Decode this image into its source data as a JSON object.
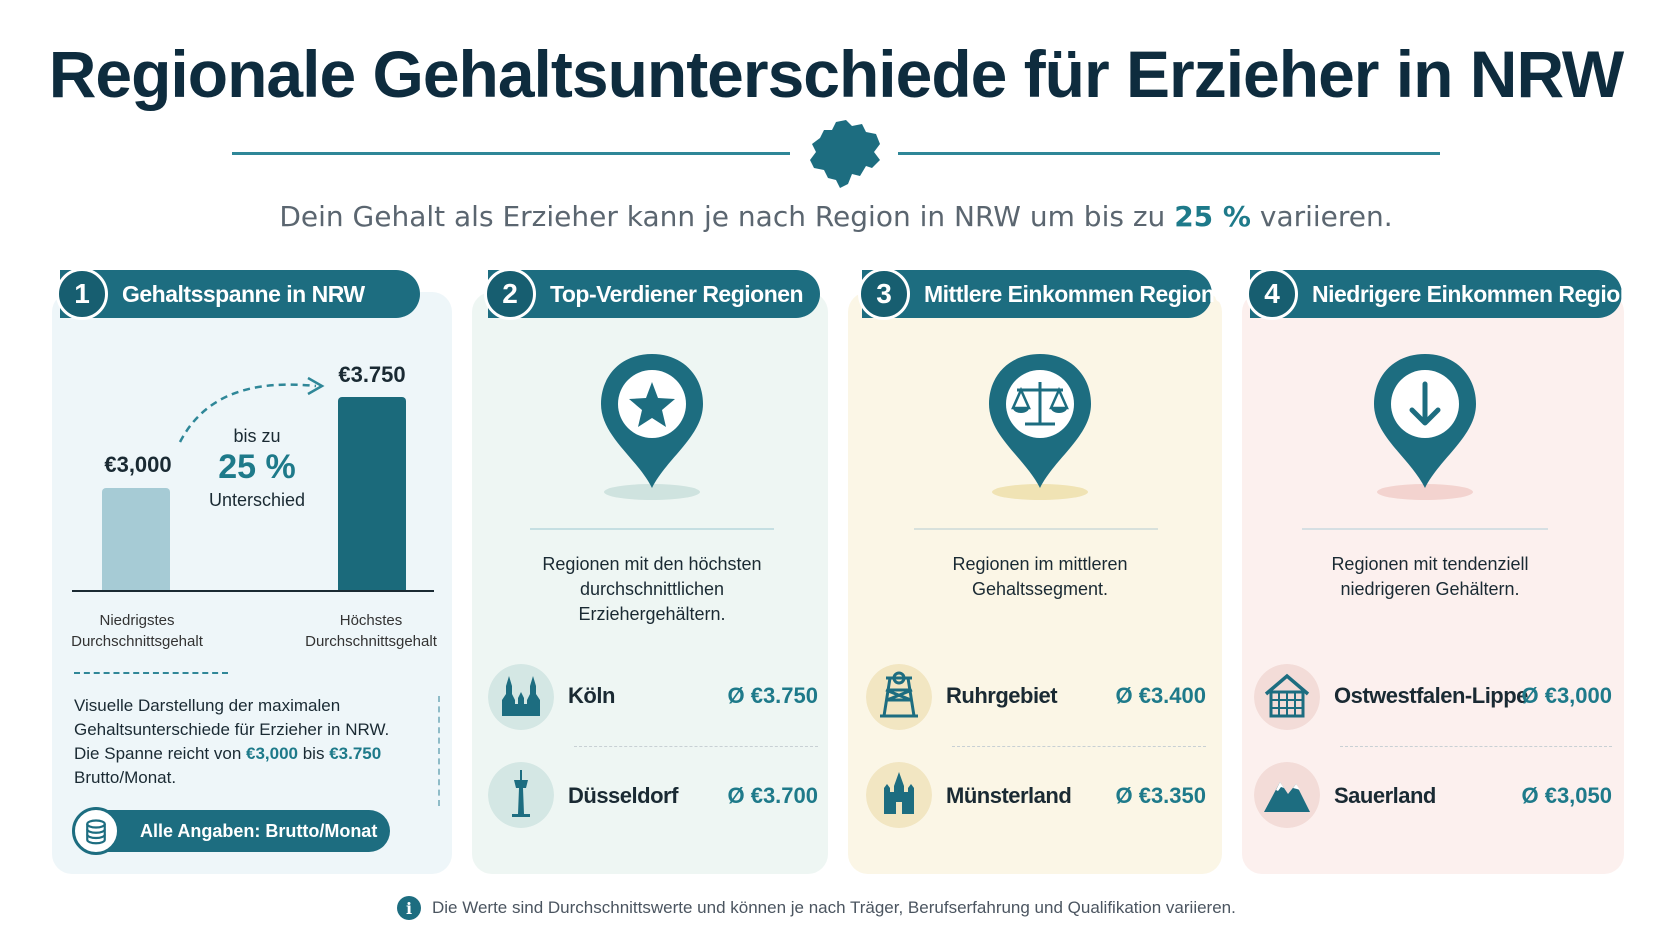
{
  "title": "Regionale Gehaltsunterschiede für Erzieher in NRW",
  "subtitle": {
    "before": "Dein Gehalt als Erzieher kann je nach Region in NRW um bis zu ",
    "accent": "25 %",
    "after": " variieren."
  },
  "panels": [
    {
      "number": "1",
      "heading": "Gehaltsspanne in NRW",
      "chart": {
        "low_value": "€3,000",
        "high_value": "€3.750",
        "diff_pre": "bis zu",
        "diff_value": "25 %",
        "diff_post": "Unterschied",
        "low_caption_1": "Niedrigstes",
        "low_caption_2": "Durchschnittsgehalt",
        "high_caption_1": "Höchstes",
        "high_caption_2": "Durchschnittsgehalt"
      },
      "description": {
        "text1": "Visuelle Darstellung der maximalen Gehaltsunterschiede für Erzieher in NRW. Die Spanne reicht von ",
        "low": "€3,000",
        "text2": " bis ",
        "high": "€3.750",
        "text3": " Brutto/Monat."
      },
      "pill": "Alle Angaben: Brutto/Monat"
    },
    {
      "number": "2",
      "heading": "Top-Verdiener Regionen",
      "icon": "star-pin-icon",
      "description": "Regionen mit den höchsten durchschnittlichen Erziehergehältern.",
      "regions": [
        {
          "name": "Köln",
          "value": "Ø €3.750",
          "icon": "cathedral-icon"
        },
        {
          "name": "Düsseldorf",
          "value": "Ø €3.700",
          "icon": "tv-tower-icon"
        }
      ]
    },
    {
      "number": "3",
      "heading": "Mittlere Einkommen Regionen",
      "icon": "scales-pin-icon",
      "description": "Regionen im mittleren Gehaltssegment.",
      "regions": [
        {
          "name": "Ruhrgebiet",
          "value": "Ø €3.400",
          "icon": "mine-tower-icon"
        },
        {
          "name": "Münsterland",
          "value": "Ø €3.350",
          "icon": "castle-icon"
        }
      ]
    },
    {
      "number": "4",
      "heading": "Niedrigere Einkommen Regionen",
      "icon": "arrow-down-pin-icon",
      "description": "Regionen mit tendenziell niedrigeren Gehältern.",
      "regions": [
        {
          "name": "Ostwestfalen-Lippe",
          "value": "Ø €3,000",
          "icon": "timber-house-icon"
        },
        {
          "name": "Sauerland",
          "value": "Ø €3,050",
          "icon": "mountains-icon"
        }
      ]
    }
  ],
  "footer": "Die Werte sind Durchschnittswerte und können je nach Träger, Berufserfahrung und Qualifikation variieren.",
  "colors": {
    "primary": "#1d6d80",
    "accent": "#1e7a8a",
    "title": "#0e2c3e",
    "panel_1_bg": "#eef6f9",
    "panel_2_bg": "#eef6f3",
    "panel_3_bg": "#fbf6e6",
    "panel_4_bg": "#fcf0ee"
  }
}
